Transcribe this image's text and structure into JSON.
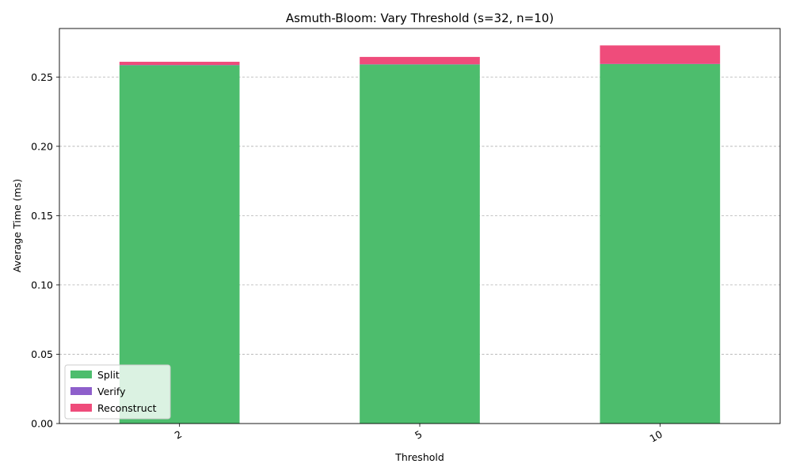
{
  "chart_data": {
    "type": "bar",
    "stacked": true,
    "title": "Asmuth-Bloom: Vary Threshold (s=32, n=10)",
    "xlabel": "Threshold",
    "ylabel": "Average Time (ms)",
    "categories": [
      "2",
      "5",
      "10"
    ],
    "ylim": [
      0,
      0.285
    ],
    "yticks": [
      "0.00",
      "0.05",
      "0.10",
      "0.15",
      "0.20",
      "0.25"
    ],
    "grid": "y-dashed",
    "legend_position": "lower-left",
    "series": [
      {
        "name": "Split",
        "color": "#4dbd6d",
        "values": [
          0.2585,
          0.259,
          0.2593
        ]
      },
      {
        "name": "Verify",
        "color": "#8e5fcb",
        "values": [
          0.0002,
          0.0002,
          0.0002
        ]
      },
      {
        "name": "Reconstruct",
        "color": "#ef4c7b",
        "values": [
          0.0023,
          0.0053,
          0.0133
        ]
      }
    ]
  }
}
